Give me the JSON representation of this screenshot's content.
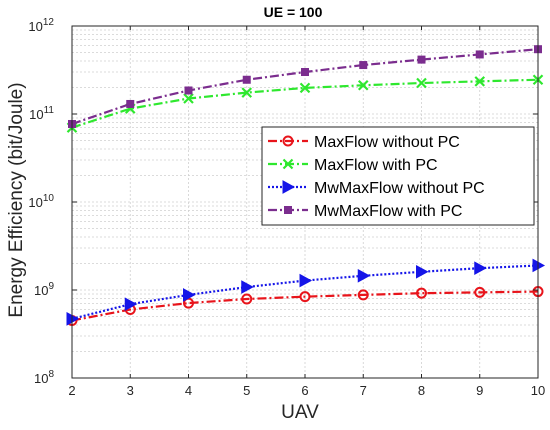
{
  "chart_data": {
    "type": "line",
    "title": "UE = 100",
    "xlabel": "UAV",
    "ylabel": "Energy Efficiency  (bit/Joule)",
    "x": [
      2,
      3,
      4,
      5,
      6,
      7,
      8,
      9,
      10
    ],
    "xlim": [
      2,
      10
    ],
    "ylim": [
      100000000,
      1000000000000
    ],
    "yscale": "log",
    "x_ticks": [
      "2",
      "3",
      "4",
      "5",
      "6",
      "7",
      "8",
      "9",
      "10"
    ],
    "y_ticks": [
      {
        "base": "10",
        "exp": "8"
      },
      {
        "base": "10",
        "exp": "9"
      },
      {
        "base": "10",
        "exp": "10"
      },
      {
        "base": "10",
        "exp": "11"
      },
      {
        "base": "10",
        "exp": "12"
      }
    ],
    "grid": true,
    "legend_position": "right",
    "series": [
      {
        "name": "MaxFlow without PC",
        "color": "#e8141b",
        "marker": "circle",
        "line": "dashdot",
        "values": [
          450000000,
          600000000,
          710000000,
          790000000,
          840000000,
          880000000,
          920000000,
          940000000,
          960000000
        ]
      },
      {
        "name": "MaxFlow with PC",
        "color": "#2ee82e",
        "marker": "x",
        "line": "dashdot",
        "values": [
          70000000000,
          115000000000,
          150000000000,
          175000000000,
          198000000000,
          212000000000,
          225000000000,
          235000000000,
          245000000000
        ]
      },
      {
        "name": "MwMaxFlow without PC",
        "color": "#1515e8",
        "marker": "triangle-right",
        "line": "dotted",
        "values": [
          470000000,
          690000000,
          880000000,
          1080000000,
          1280000000,
          1450000000,
          1610000000,
          1770000000,
          1900000000
        ]
      },
      {
        "name": "MwMaxFlow with PC",
        "color": "#7b2d8e",
        "marker": "square",
        "line": "dashdot",
        "values": [
          77000000000,
          130000000000,
          185000000000,
          245000000000,
          300000000000,
          360000000000,
          415000000000,
          475000000000,
          545000000000
        ]
      }
    ]
  }
}
